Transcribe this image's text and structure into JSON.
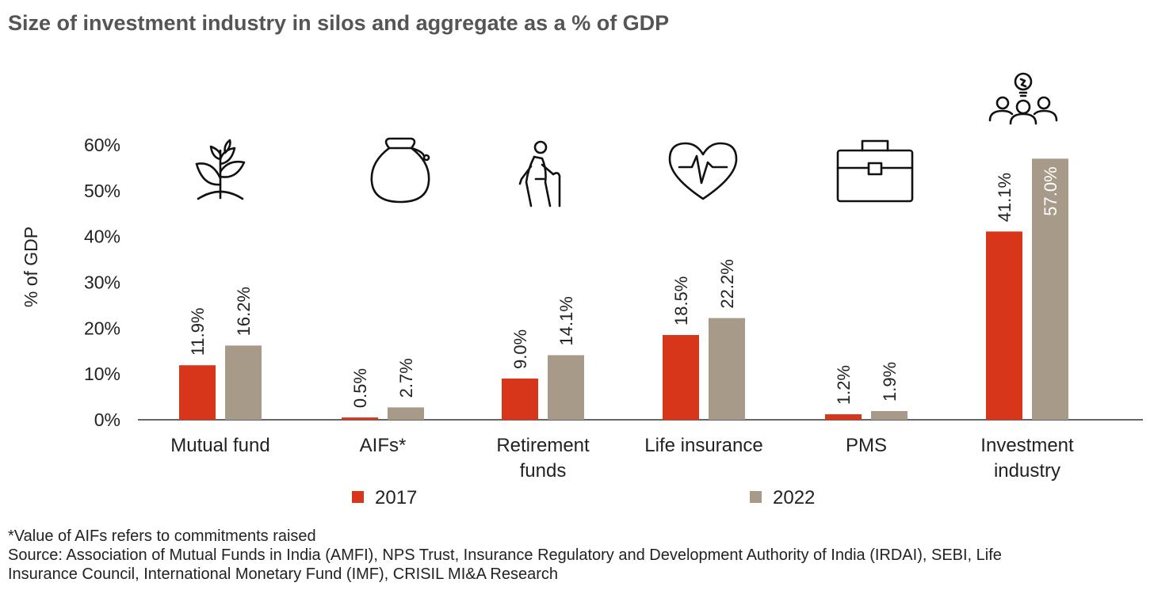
{
  "title": "Size of investment industry in silos and aggregate as a % of GDP",
  "chart_data": {
    "type": "bar",
    "categories": [
      [
        "Mutual fund"
      ],
      [
        "AIFs*"
      ],
      [
        "Retirement",
        "funds"
      ],
      [
        "Life insurance"
      ],
      [
        "PMS"
      ],
      [
        "Investment",
        "industry"
      ]
    ],
    "series": [
      {
        "name": "2017",
        "color": "#D7361B",
        "values": [
          11.9,
          0.5,
          9.0,
          18.5,
          1.2,
          41.1
        ],
        "labels": [
          "11.9%",
          "0.5%",
          "9.0%",
          "18.5%",
          "1.2%",
          "41.1%"
        ]
      },
      {
        "name": "2022",
        "color": "#A89A88",
        "values": [
          16.2,
          2.7,
          14.1,
          22.2,
          1.9,
          57.0
        ],
        "labels": [
          "16.2%",
          "2.7%",
          "14.1%",
          "22.2%",
          "1.9%",
          "57.0%"
        ]
      }
    ],
    "ylabel": "% of GDP",
    "ylim": [
      0,
      60
    ],
    "yticks": [
      "0%",
      "10%",
      "20%",
      "30%",
      "40%",
      "50%",
      "60%"
    ],
    "grid": false,
    "legend": "bottom",
    "icons": [
      "plant-icon",
      "money-bag-icon",
      "elderly-person-icon",
      "heart-pulse-icon",
      "briefcase-icon",
      "team-idea-icon"
    ]
  },
  "notes": {
    "footnote": "*Value of AIFs refers to commitments raised",
    "source_line1": "Source: Association of Mutual Funds in India (AMFI), NPS Trust, Insurance Regulatory and Development Authority of India (IRDAI), SEBI, Life",
    "source_line2": "Insurance Council, International Monetary Fund (IMF), CRISIL MI&A Research"
  }
}
